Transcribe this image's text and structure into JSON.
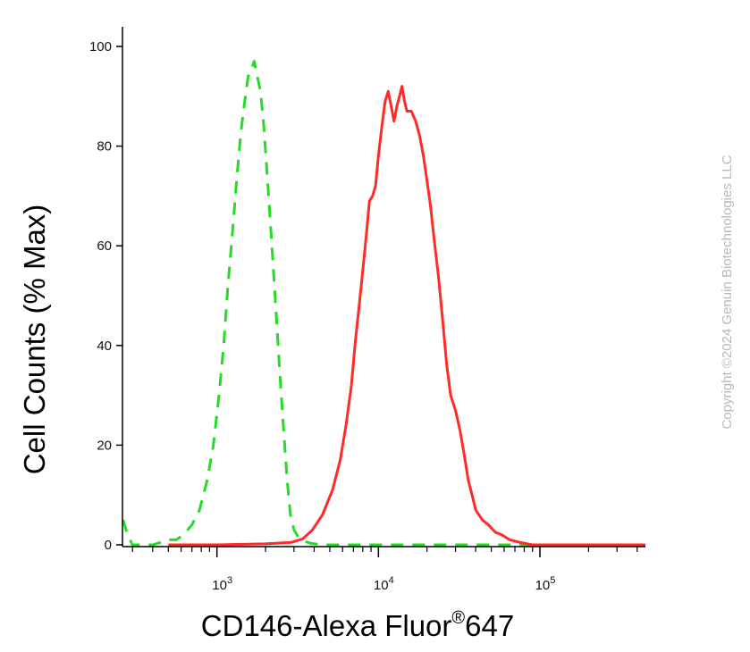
{
  "chart_data": {
    "type": "line",
    "title": "",
    "xlabel": "CD146-Alexa Fluor",
    "xlabel_superscript": "®",
    "xlabel_suffix": "647",
    "ylabel": "Cell Counts (% Max)",
    "xscale": "log",
    "xlim": [
      260,
      450000
    ],
    "ylim": [
      0,
      100
    ],
    "x_ticks": [
      {
        "base": "10",
        "exp": "3",
        "value": 1000
      },
      {
        "base": "10",
        "exp": "4",
        "value": 10000
      },
      {
        "base": "10",
        "exp": "5",
        "value": 100000
      }
    ],
    "y_ticks": [
      0,
      20,
      40,
      60,
      80,
      100
    ],
    "grid": false,
    "legend": "none",
    "series": [
      {
        "color": "#22dd22",
        "style": "dashed",
        "points": [
          [
            262,
            5
          ],
          [
            280,
            2
          ],
          [
            300,
            0
          ],
          [
            350,
            0
          ],
          [
            400,
            0
          ],
          [
            450,
            0.5
          ],
          [
            500,
            1
          ],
          [
            560,
            1
          ],
          [
            620,
            2
          ],
          [
            700,
            4
          ],
          [
            780,
            7
          ],
          [
            870,
            13
          ],
          [
            950,
            20
          ],
          [
            1030,
            30
          ],
          [
            1100,
            40
          ],
          [
            1170,
            52
          ],
          [
            1250,
            63
          ],
          [
            1330,
            74
          ],
          [
            1410,
            83
          ],
          [
            1500,
            90
          ],
          [
            1560,
            94
          ],
          [
            1620,
            95
          ],
          [
            1700,
            97
          ],
          [
            1780,
            94
          ],
          [
            1860,
            91
          ],
          [
            1950,
            84
          ],
          [
            2050,
            74
          ],
          [
            2150,
            64
          ],
          [
            2250,
            54
          ],
          [
            2360,
            43
          ],
          [
            2480,
            32
          ],
          [
            2600,
            22
          ],
          [
            2720,
            13
          ],
          [
            2850,
            6
          ],
          [
            3000,
            3
          ],
          [
            3200,
            1.5
          ],
          [
            3500,
            0.7
          ],
          [
            3800,
            0.3
          ],
          [
            4500,
            0
          ],
          [
            10000,
            0
          ],
          [
            100000,
            0
          ],
          [
            450000,
            0
          ]
        ]
      },
      {
        "color": "#ff2a2a",
        "style": "solid",
        "points": [
          [
            500,
            0
          ],
          [
            1000,
            0
          ],
          [
            2000,
            0.2
          ],
          [
            2900,
            0.5
          ],
          [
            3400,
            1.2
          ],
          [
            3900,
            3
          ],
          [
            4500,
            6
          ],
          [
            5200,
            11
          ],
          [
            5800,
            17
          ],
          [
            6300,
            24
          ],
          [
            6800,
            32
          ],
          [
            7200,
            41
          ],
          [
            7600,
            48
          ],
          [
            8000,
            55
          ],
          [
            8400,
            62
          ],
          [
            8800,
            69
          ],
          [
            9200,
            70
          ],
          [
            9600,
            72
          ],
          [
            10000,
            78
          ],
          [
            10500,
            84
          ],
          [
            11000,
            89
          ],
          [
            11500,
            91
          ],
          [
            12000,
            88
          ],
          [
            12500,
            85
          ],
          [
            13000,
            88
          ],
          [
            13500,
            90
          ],
          [
            14000,
            92
          ],
          [
            14500,
            89
          ],
          [
            15000,
            87
          ],
          [
            16000,
            87
          ],
          [
            17000,
            85
          ],
          [
            18000,
            82
          ],
          [
            19000,
            78
          ],
          [
            20000,
            73
          ],
          [
            21000,
            68
          ],
          [
            22000,
            62
          ],
          [
            23500,
            54
          ],
          [
            25000,
            45
          ],
          [
            26500,
            36
          ],
          [
            28000,
            30
          ],
          [
            30000,
            27
          ],
          [
            32000,
            23
          ],
          [
            34000,
            18
          ],
          [
            36000,
            13
          ],
          [
            38000,
            10
          ],
          [
            40000,
            7
          ],
          [
            44000,
            5
          ],
          [
            48000,
            4
          ],
          [
            53000,
            2.5
          ],
          [
            58000,
            2
          ],
          [
            65000,
            1
          ],
          [
            75000,
            0.5
          ],
          [
            90000,
            0
          ],
          [
            120000,
            0
          ],
          [
            450000,
            0
          ]
        ]
      }
    ]
  },
  "watermark": "Copyright ©2024 Genuin Biotechnologies LLC"
}
